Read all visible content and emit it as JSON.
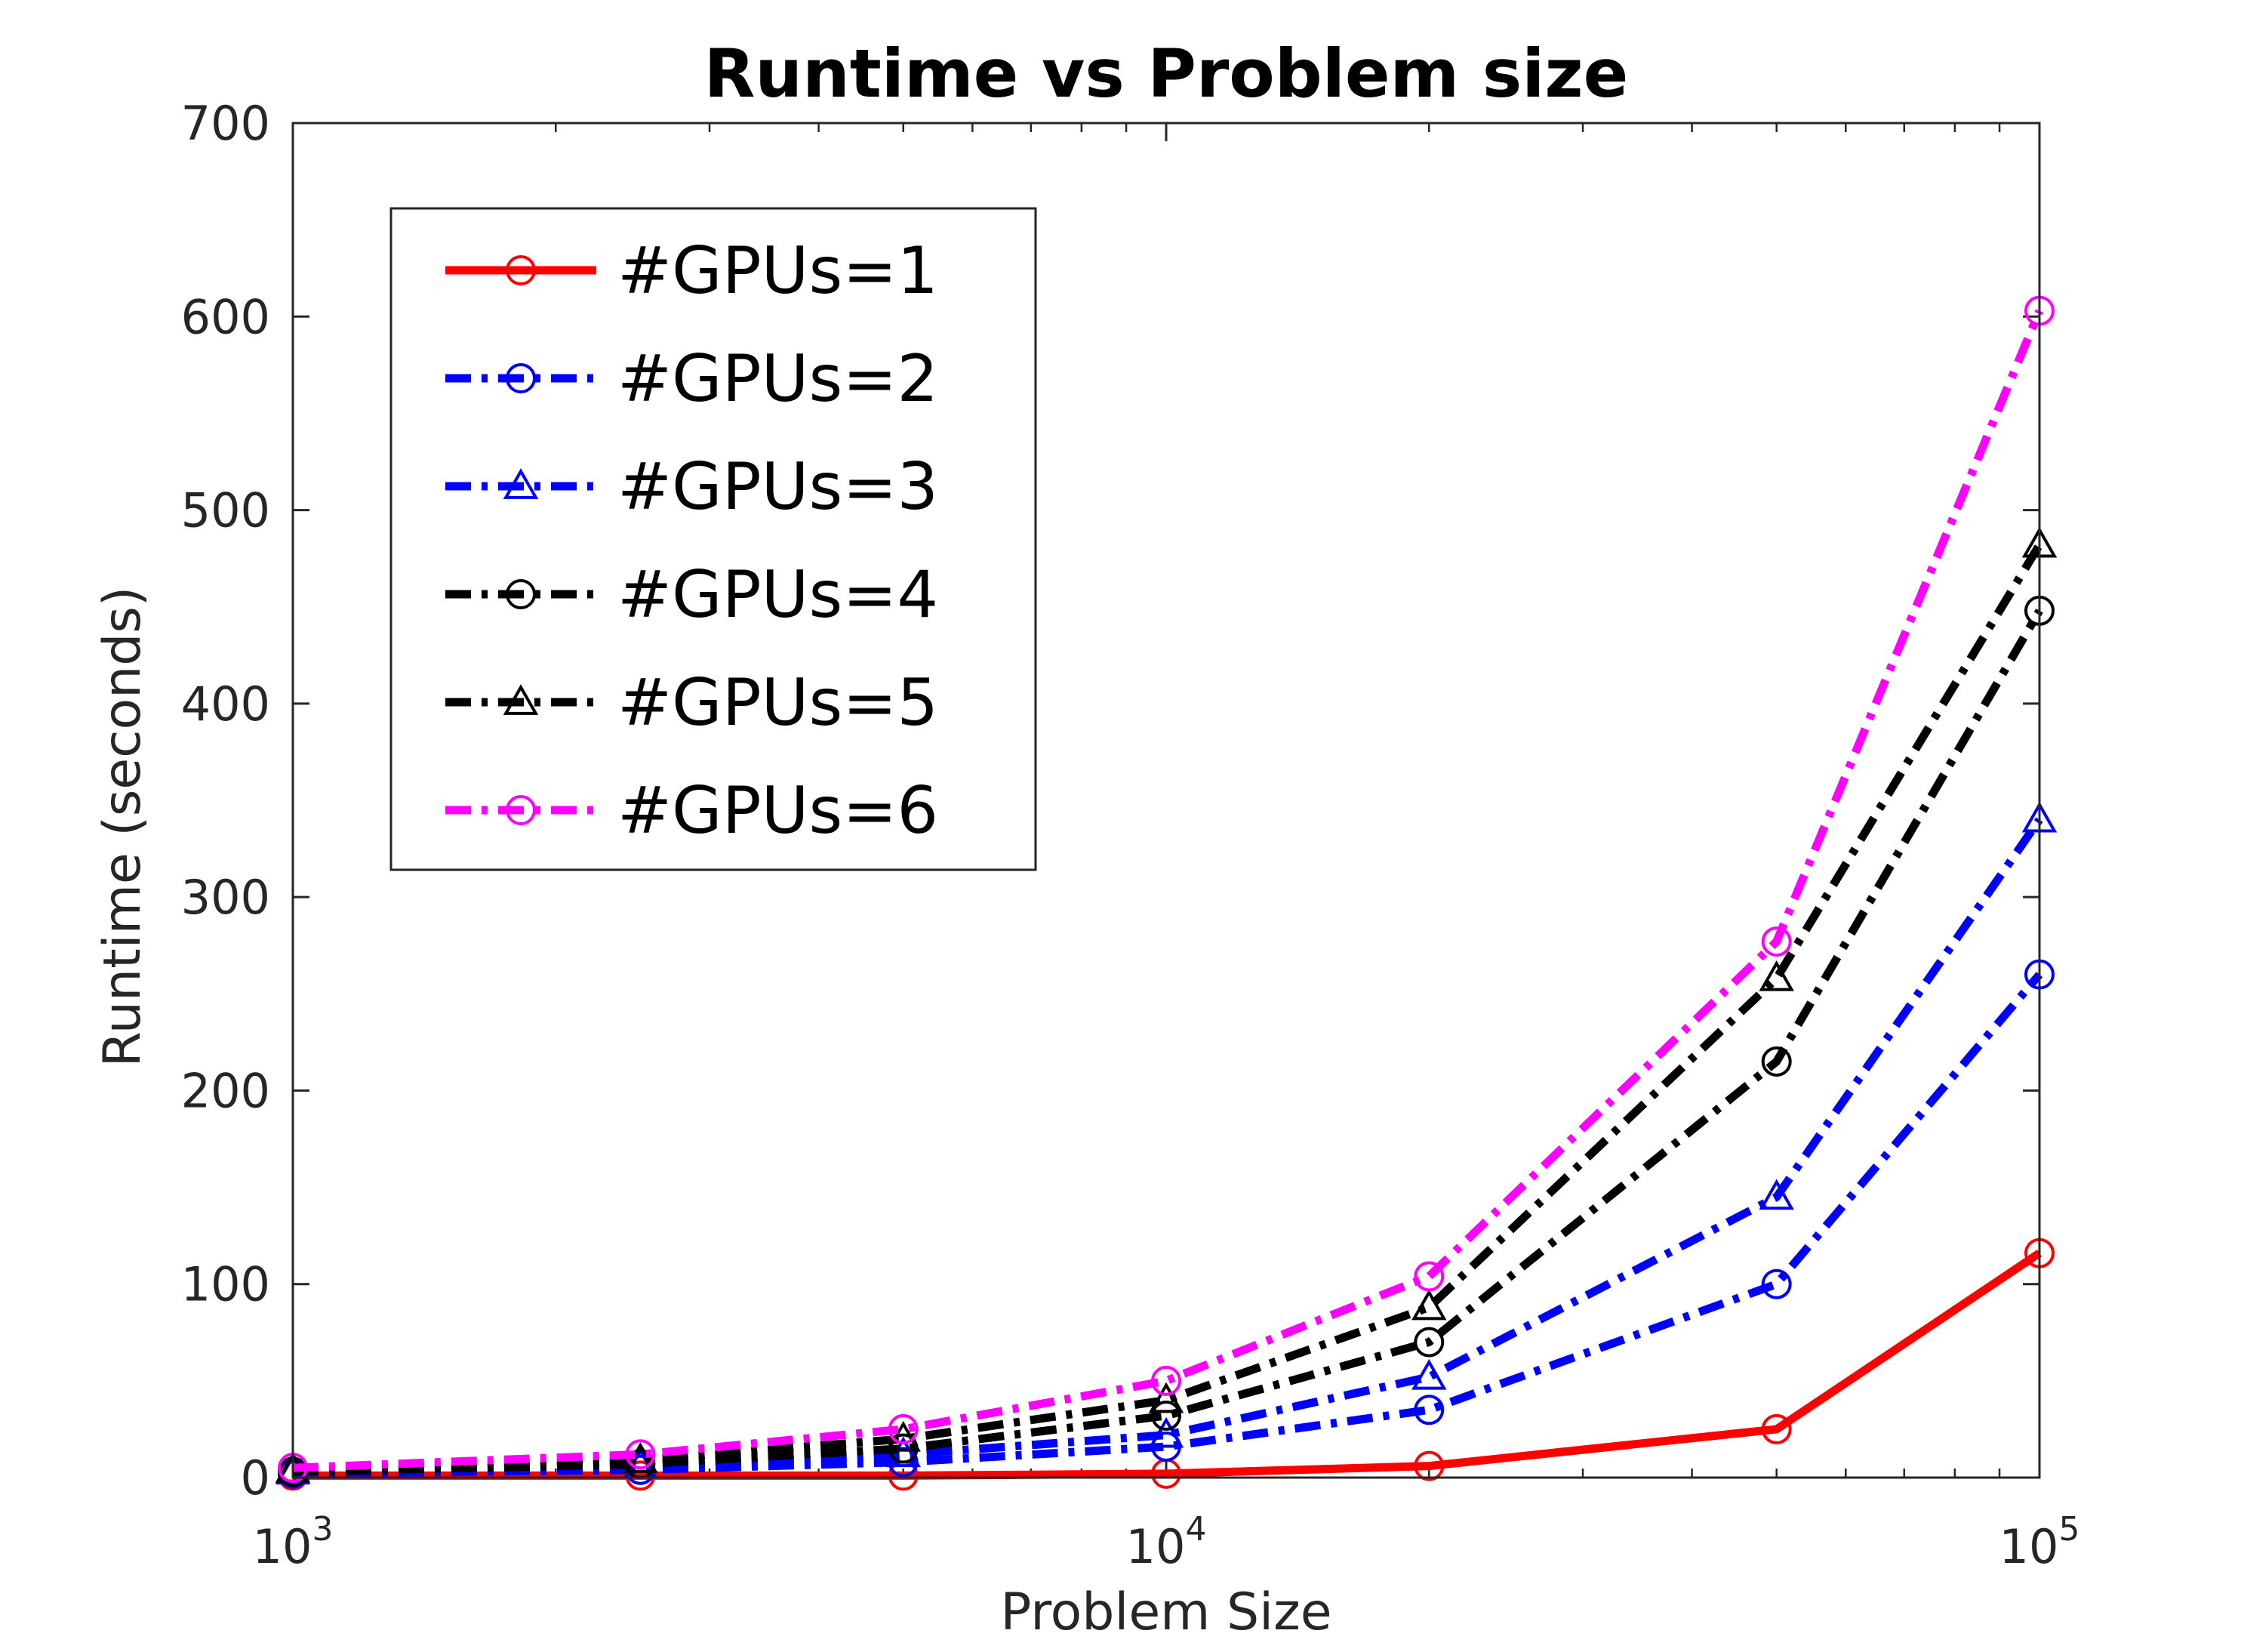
{
  "chart_data": {
    "type": "line",
    "title": "Runtime vs Problem size",
    "xlabel": "Problem Size",
    "ylabel": "Runtime (seconds)",
    "xscale": "log",
    "xlim": [
      1000,
      100000
    ],
    "ylim": [
      0,
      700
    ],
    "grid": false,
    "legend_position": "top-left",
    "x": [
      1000,
      2500,
      5000,
      10000,
      20000,
      50000,
      100000
    ],
    "xticks": [
      {
        "base": "10",
        "exp": "3"
      },
      {
        "base": "10",
        "exp": "4"
      },
      {
        "base": "10",
        "exp": "5"
      }
    ],
    "yticks": [
      "0",
      "100",
      "200",
      "300",
      "400",
      "500",
      "600",
      "700"
    ],
    "series": [
      {
        "name": "#GPUs=1",
        "color": "#ff0000",
        "marker": "circle",
        "style": "solid",
        "values": [
          1,
          1,
          1,
          2,
          6,
          25,
          116
        ]
      },
      {
        "name": "#GPUs=2",
        "color": "#0000ff",
        "marker": "circle",
        "style": "dashdot",
        "values": [
          2,
          4,
          8,
          16,
          35,
          100,
          260
        ]
      },
      {
        "name": "#GPUs=3",
        "color": "#0000ff",
        "marker": "triangle",
        "style": "dashdot",
        "values": [
          3,
          6,
          12,
          22,
          52,
          145,
          340
        ]
      },
      {
        "name": "#GPUs=4",
        "color": "#000000",
        "marker": "circle",
        "style": "dashdot",
        "values": [
          3,
          7,
          15,
          32,
          70,
          215,
          448
        ]
      },
      {
        "name": "#GPUs=5",
        "color": "#000000",
        "marker": "triangle",
        "style": "dashdot",
        "values": [
          4,
          9,
          20,
          40,
          88,
          258,
          482
        ]
      },
      {
        "name": "#GPUs=6",
        "color": "#ff00ff",
        "marker": "circle",
        "style": "dashdot",
        "values": [
          5,
          12,
          25,
          50,
          104,
          277,
          603
        ]
      }
    ]
  }
}
